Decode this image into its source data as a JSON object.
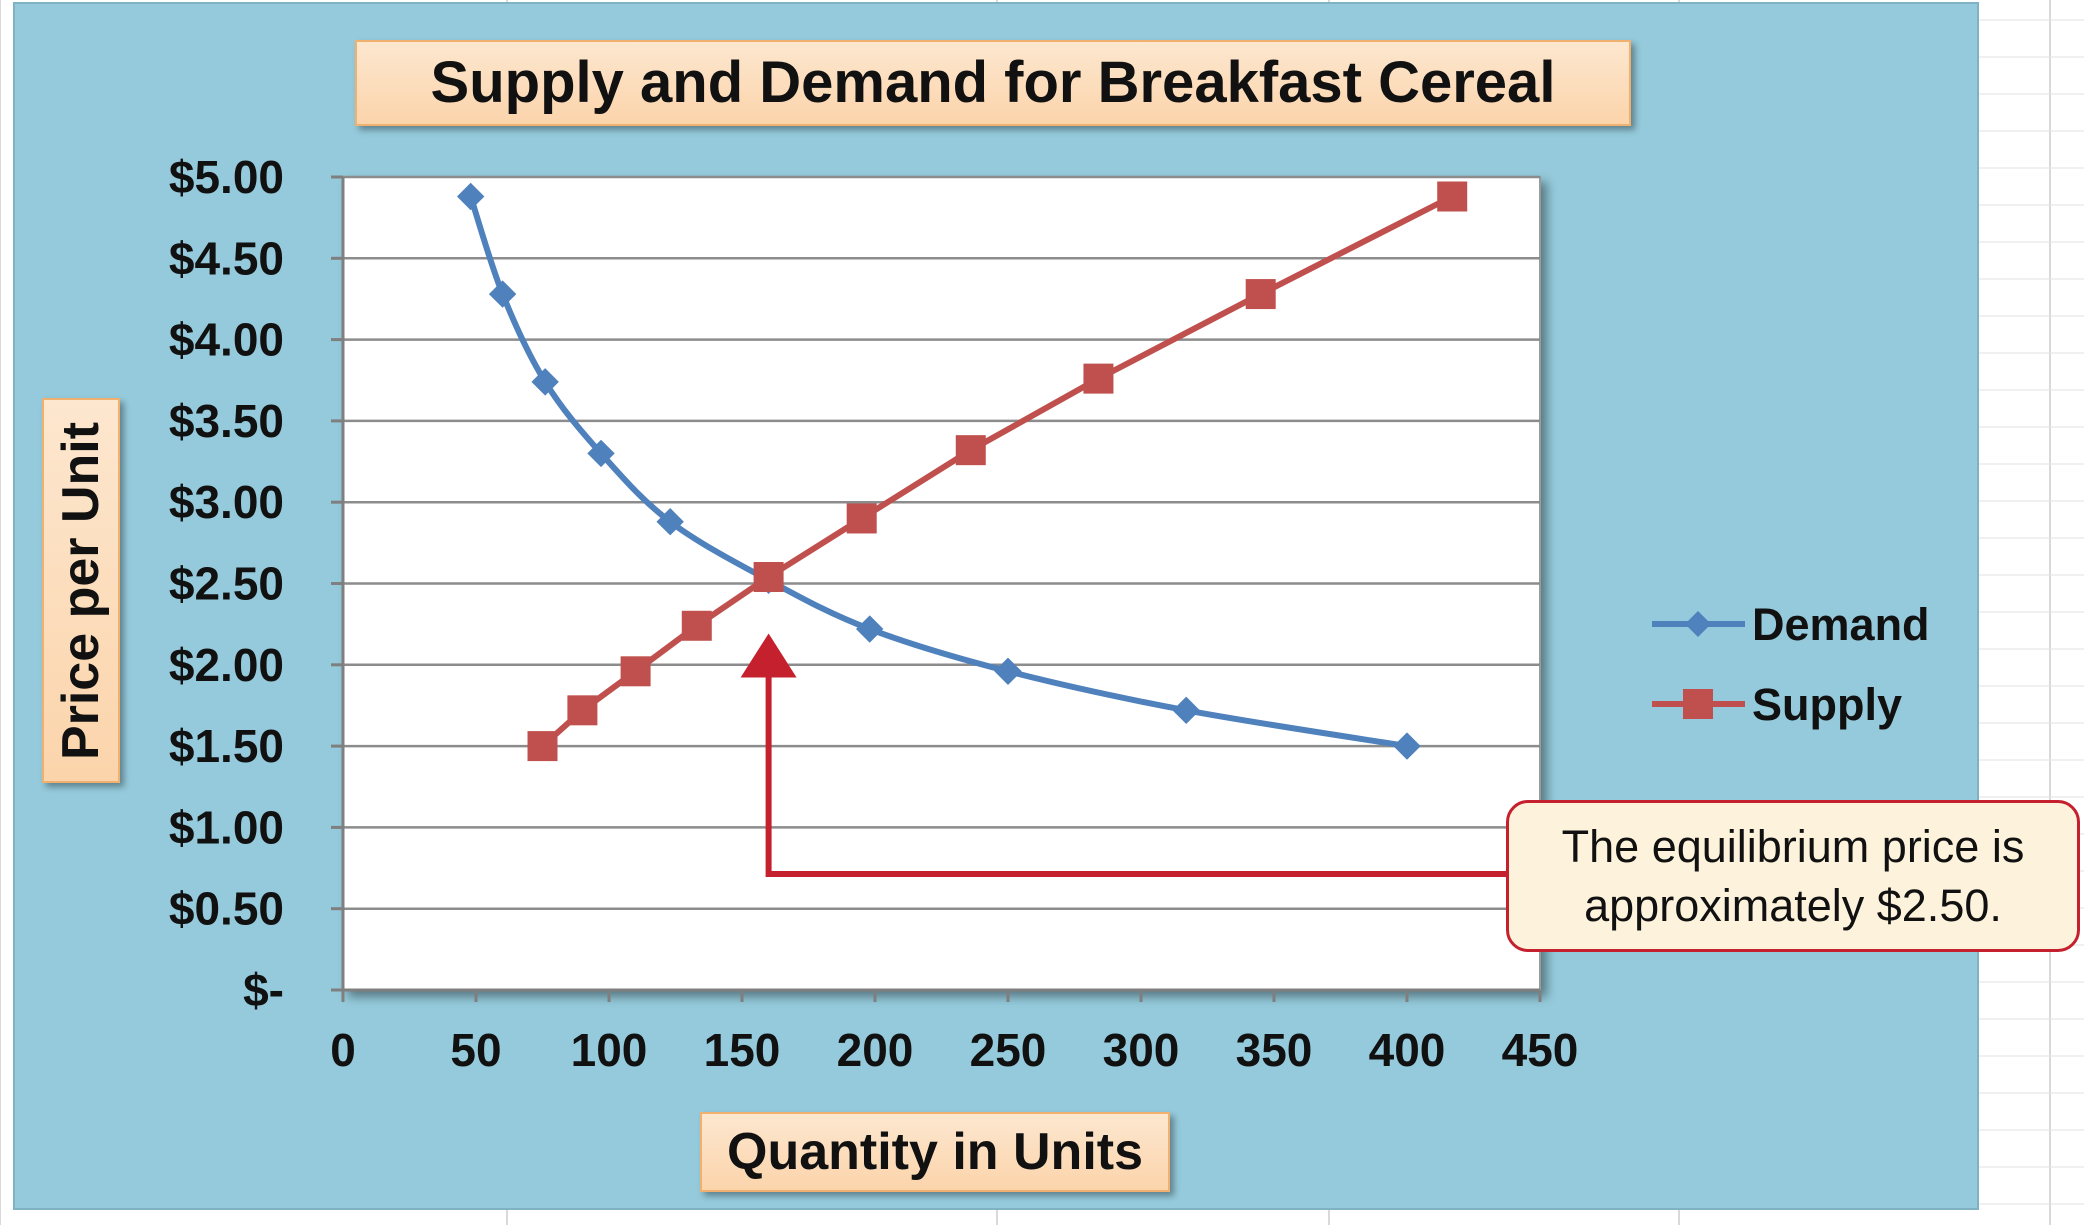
{
  "chart_data": {
    "type": "line",
    "title": "Supply and Demand for Breakfast Cereal",
    "xlabel": "Quantity in Units",
    "ylabel": "Price per Unit",
    "xlim": [
      0,
      450
    ],
    "ylim": [
      0,
      5
    ],
    "x_ticks": [
      0,
      50,
      100,
      150,
      200,
      250,
      300,
      350,
      400,
      450
    ],
    "x_tick_labels": [
      "0",
      "50",
      "100",
      "150",
      "200",
      "250",
      "300",
      "350",
      "400",
      "450"
    ],
    "y_ticks": [
      0,
      0.5,
      1,
      1.5,
      2,
      2.5,
      3,
      3.5,
      4,
      4.5,
      5
    ],
    "y_tick_labels": [
      "$-",
      "$0.50",
      "$1.00",
      "$1.50",
      "$2.00",
      "$2.50",
      "$3.00",
      "$3.50",
      "$4.00",
      "$4.50",
      "$5.00"
    ],
    "grid": true,
    "legend_position": "right",
    "series": [
      {
        "name": "Demand",
        "color": "#4f81bd",
        "marker": "diamond",
        "smooth": true,
        "points": [
          [
            48,
            4.88
          ],
          [
            60,
            4.28
          ],
          [
            76,
            3.74
          ],
          [
            97,
            3.3
          ],
          [
            123,
            2.88
          ],
          [
            160,
            2.52
          ],
          [
            198,
            2.22
          ],
          [
            250,
            1.96
          ],
          [
            317,
            1.72
          ],
          [
            400,
            1.5
          ]
        ]
      },
      {
        "name": "Supply",
        "color": "#c0504d",
        "marker": "square",
        "smooth": false,
        "points": [
          [
            75,
            1.5
          ],
          [
            90,
            1.72
          ],
          [
            110,
            1.96
          ],
          [
            133,
            2.24
          ],
          [
            160,
            2.54
          ],
          [
            195,
            2.9
          ],
          [
            236,
            3.32
          ],
          [
            284,
            3.76
          ],
          [
            345,
            4.28
          ],
          [
            417,
            4.88
          ]
        ]
      }
    ],
    "annotation": {
      "lines": [
        "The equilibrium price is",
        "approximately $2.50."
      ],
      "arrow_target": [
        160,
        2.5
      ],
      "color": "#c5202e"
    }
  }
}
